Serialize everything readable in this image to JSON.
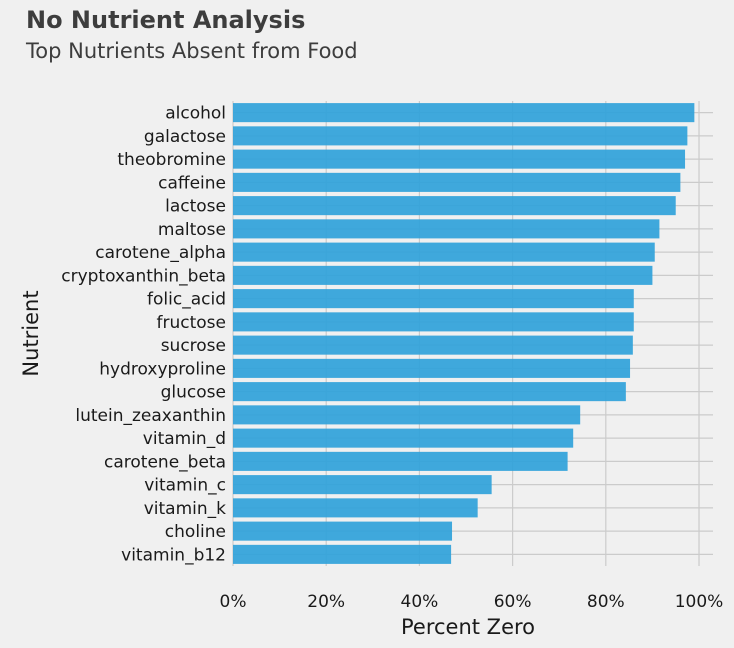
{
  "chart_data": {
    "type": "bar",
    "orientation": "horizontal",
    "title": "No Nutrient Analysis",
    "subtitle": "Top Nutrients Absent from Food",
    "xlabel": "Percent Zero",
    "ylabel": "Nutrient",
    "xlim": [
      0,
      1.03
    ],
    "xticks": [
      0,
      0.2,
      0.4,
      0.6,
      0.8,
      1.0
    ],
    "xtick_labels": [
      "0%",
      "20%",
      "40%",
      "60%",
      "80%",
      "100%"
    ],
    "categories": [
      "alcohol",
      "galactose",
      "theobromine",
      "caffeine",
      "lactose",
      "maltose",
      "carotene_alpha",
      "cryptoxanthin_beta",
      "folic_acid",
      "fructose",
      "sucrose",
      "hydroxyproline",
      "glucose",
      "lutein_zeaxanthin",
      "vitamin_d",
      "carotene_beta",
      "vitamin_c",
      "vitamin_k",
      "choline",
      "vitamin_b12"
    ],
    "values": [
      0.99,
      0.975,
      0.97,
      0.96,
      0.95,
      0.915,
      0.905,
      0.9,
      0.86,
      0.86,
      0.858,
      0.852,
      0.843,
      0.745,
      0.73,
      0.718,
      0.555,
      0.525,
      0.47,
      0.468
    ],
    "bar_color": "#30a2da",
    "grid": true,
    "legend": "none"
  }
}
